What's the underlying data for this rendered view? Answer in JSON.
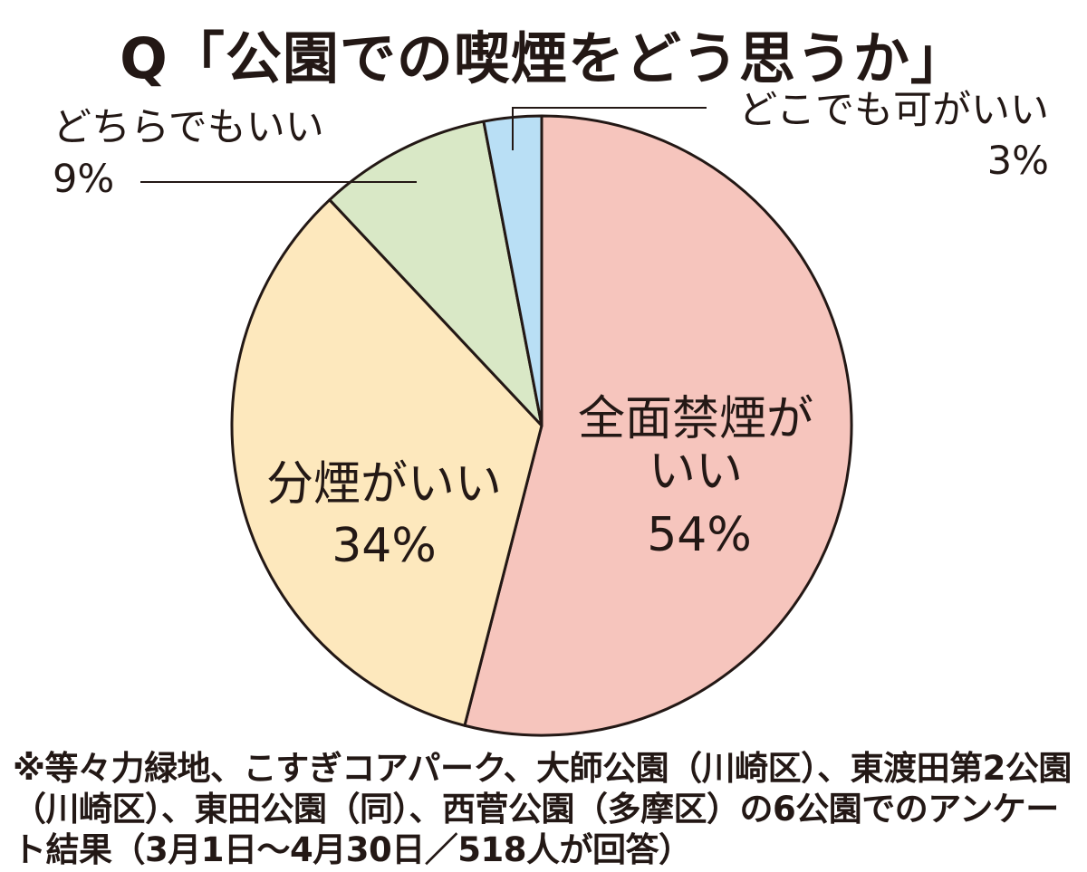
{
  "chart_data": {
    "type": "pie",
    "title": "Q「公園での喫煙をどう思うか」",
    "categories": [
      "全面禁煙がいい",
      "分煙がいい",
      "どちらでもいい",
      "どこでも可がいい"
    ],
    "values": [
      54,
      34,
      9,
      3
    ],
    "value_labels": [
      "54%",
      "34%",
      "9%",
      "3%"
    ],
    "colors": [
      "#f6c5bd",
      "#fde8bd",
      "#d9e8c6",
      "#b9dff5"
    ],
    "start": "12 o'clock",
    "direction": "clockwise",
    "note": "※等々力緑地、こすぎコアパーク、大師公園（川崎区）、東渡田第2公園（川崎区）、東田公園（同）、西菅公園（多摩区）の6公園でのアンケート結果（3月1日〜4月30日／518人が回答）"
  }
}
